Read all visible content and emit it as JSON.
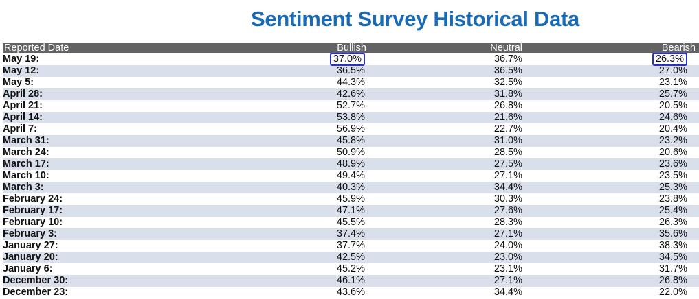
{
  "page": {
    "title": "Sentiment Survey Historical Data"
  },
  "table": {
    "headers": {
      "date": "Reported Date",
      "bullish": "Bullish",
      "neutral": "Neutral",
      "bearish": "Bearish"
    },
    "rows": [
      {
        "date": "May 19:",
        "bullish": "37.0%",
        "neutral": "36.7%",
        "bearish": "26.3%",
        "highlight_bullish": true,
        "highlight_bearish": true
      },
      {
        "date": "May 12:",
        "bullish": "36.5%",
        "neutral": "36.5%",
        "bearish": "27.0%"
      },
      {
        "date": "May 5:",
        "bullish": "44.3%",
        "neutral": "32.5%",
        "bearish": "23.1%"
      },
      {
        "date": "April 28:",
        "bullish": "42.6%",
        "neutral": "31.8%",
        "bearish": "25.7%"
      },
      {
        "date": "April 21:",
        "bullish": "52.7%",
        "neutral": "26.8%",
        "bearish": "20.5%"
      },
      {
        "date": "April 14:",
        "bullish": "53.8%",
        "neutral": "21.6%",
        "bearish": "24.6%"
      },
      {
        "date": "April 7:",
        "bullish": "56.9%",
        "neutral": "22.7%",
        "bearish": "20.4%"
      },
      {
        "date": "March 31:",
        "bullish": "45.8%",
        "neutral": "31.0%",
        "bearish": "23.2%"
      },
      {
        "date": "March 24:",
        "bullish": "50.9%",
        "neutral": "28.5%",
        "bearish": "20.6%"
      },
      {
        "date": "March 17:",
        "bullish": "48.9%",
        "neutral": "27.5%",
        "bearish": "23.6%"
      },
      {
        "date": "March 10:",
        "bullish": "49.4%",
        "neutral": "27.1%",
        "bearish": "23.5%"
      },
      {
        "date": "March 3:",
        "bullish": "40.3%",
        "neutral": "34.4%",
        "bearish": "25.3%"
      },
      {
        "date": "February 24:",
        "bullish": "45.9%",
        "neutral": "30.3%",
        "bearish": "23.8%"
      },
      {
        "date": "February 17:",
        "bullish": "47.1%",
        "neutral": "27.6%",
        "bearish": "25.4%"
      },
      {
        "date": "February 10:",
        "bullish": "45.5%",
        "neutral": "28.3%",
        "bearish": "26.3%"
      },
      {
        "date": "February 3:",
        "bullish": "37.4%",
        "neutral": "27.1%",
        "bearish": "35.6%"
      },
      {
        "date": "January 27:",
        "bullish": "37.7%",
        "neutral": "24.0%",
        "bearish": "38.3%"
      },
      {
        "date": "January 20:",
        "bullish": "42.5%",
        "neutral": "23.0%",
        "bearish": "34.5%"
      },
      {
        "date": "January 6:",
        "bullish": "45.2%",
        "neutral": "23.1%",
        "bearish": "31.7%"
      },
      {
        "date": "December 30:",
        "bullish": "46.1%",
        "neutral": "27.1%",
        "bearish": "26.8%"
      },
      {
        "date": "December 23:",
        "bullish": "43.6%",
        "neutral": "34.4%",
        "bearish": "22.0%"
      }
    ]
  },
  "colors": {
    "title": "#1a6bb5",
    "header_bg": "#636363",
    "row_alt_bg": "#d9dfeb",
    "highlight_border": "#2a33c9"
  }
}
